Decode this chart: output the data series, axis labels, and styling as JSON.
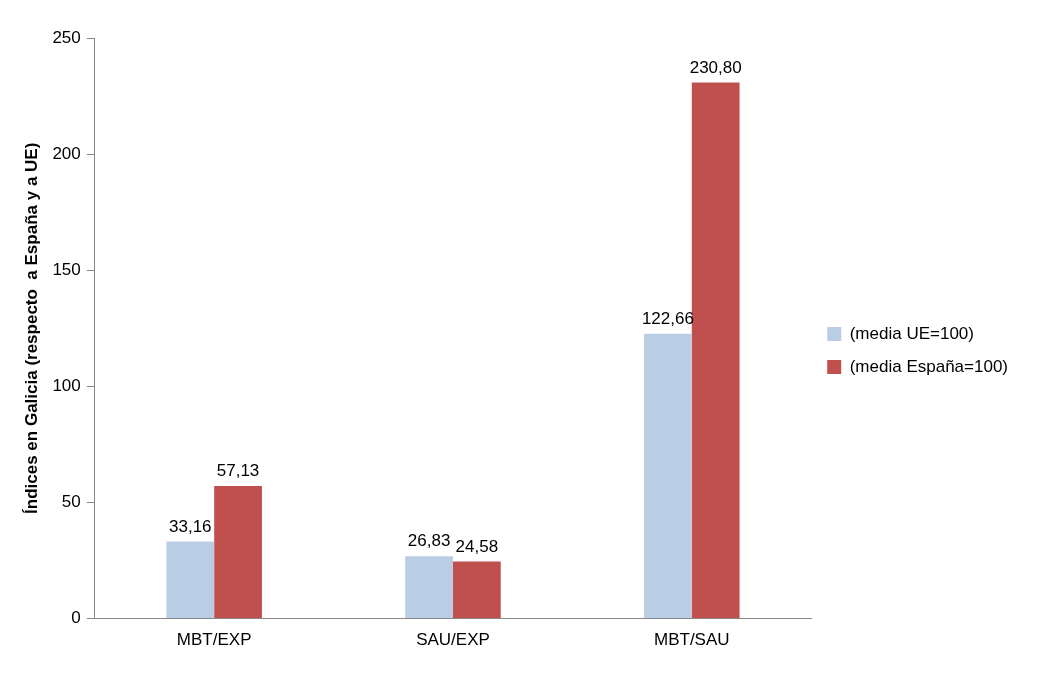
{
  "chart_data": {
    "type": "bar",
    "ylabel": "Índices en Galicia (respecto  a España y a UE)",
    "categories": [
      "MBT/EXP",
      "SAU/EXP",
      "MBT/SAU"
    ],
    "series": [
      {
        "name": "(media UE=100)",
        "color": "#b9cde5",
        "values": [
          33.16,
          26.83,
          122.66
        ],
        "value_labels": [
          "33,16",
          "26,83",
          "122,66"
        ]
      },
      {
        "name": "(media España=100)",
        "color": "#c0504d",
        "values": [
          57.13,
          24.58,
          230.8
        ],
        "value_labels": [
          "57,13",
          "24,58",
          "230,80"
        ]
      }
    ],
    "ylim": [
      0,
      250
    ],
    "yticks": [
      0,
      50,
      100,
      150,
      200,
      250
    ],
    "grid": false,
    "legend": "right"
  }
}
